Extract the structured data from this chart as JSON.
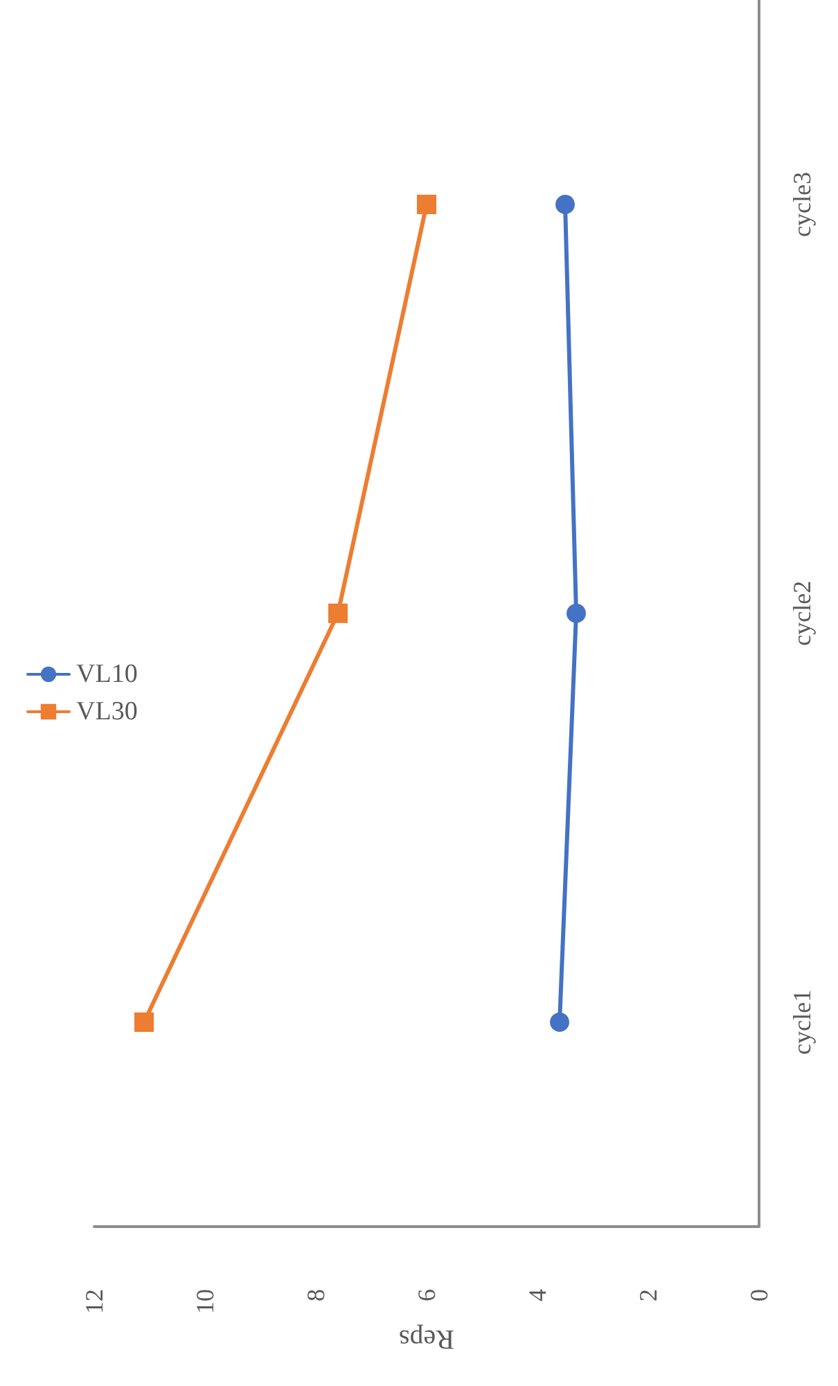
{
  "chart_data": {
    "type": "line",
    "orientation": "horizontal",
    "categories": [
      "cycle3",
      "cycle2",
      "cycle1"
    ],
    "xlabel": "Reps",
    "xlim": [
      12,
      0
    ],
    "xticks": [
      12,
      10,
      8,
      6,
      4,
      2,
      0
    ],
    "grid": false,
    "legend": "left",
    "series": [
      {
        "name": "VL10",
        "color": "#4472c4",
        "marker": "circle",
        "values": [
          3.5,
          3.3,
          3.6
        ]
      },
      {
        "name": "VL30",
        "color": "#ed7d31",
        "marker": "square",
        "values": [
          6.0,
          7.6,
          11.1
        ]
      }
    ]
  }
}
